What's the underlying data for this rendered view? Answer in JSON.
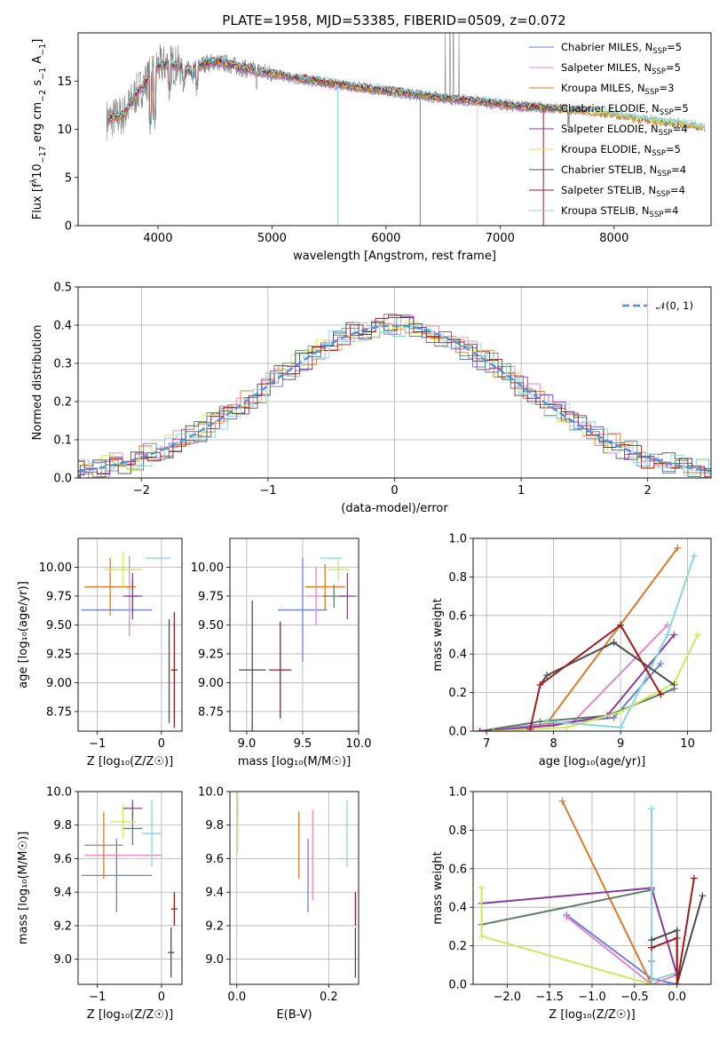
{
  "figure": {
    "title": "PLATE=1958, MJD=53385, FIBERID=0509, z=0.072"
  },
  "colors": {
    "chabrier_miles": "#6a7fd8",
    "salpeter_miles": "#e088c5",
    "kroupa_miles": "#d77a2a",
    "chabrier_elodie": "#5b7f63",
    "salpeter_elodie": "#8d3a9d",
    "kroupa_elodie": "#cfe85a",
    "chabrier_stelib": "#4d4d4d",
    "salpeter_stelib": "#a11b1b",
    "kroupa_stelib": "#86d7dd",
    "gaussian": "#5a8fd0",
    "data": "#808080",
    "grid": "#b0b0b0"
  },
  "chart_data": [
    {
      "id": "spectrum",
      "type": "line",
      "title": "PLATE=1958, MJD=53385, FIBERID=0509, z=0.072",
      "xlabel": "wavelength [Angstrom, rest frame]",
      "ylabel_main": "Flux [f",
      "ylabel_sub": "λ",
      "ylabel_mid": "10",
      "ylabel_sup1": "−17",
      "ylabel_mid2": " erg cm",
      "ylabel_sup2": "−2",
      "ylabel_mid3": " s",
      "ylabel_sup3": "−1",
      "ylabel_mid4": " A",
      "ylabel_sup4": "−1",
      "ylabel_end": "]",
      "xlim": [
        3300,
        8850
      ],
      "ylim": [
        0,
        20
      ],
      "xticks": [
        "4000",
        "5000",
        "6000",
        "7000",
        "8000"
      ],
      "yticks": [
        "0",
        "5",
        "10",
        "15"
      ],
      "grid": false,
      "legend_position": "top-right",
      "legend": [
        {
          "name": "Chabrier MILES, N",
          "sub": "SSP",
          "suffix": "=5",
          "color_key": "chabrier_miles"
        },
        {
          "name": "Salpeter MILES, N",
          "sub": "SSP",
          "suffix": "=5",
          "color_key": "salpeter_miles"
        },
        {
          "name": "Kroupa MILES, N",
          "sub": "SSP",
          "suffix": "=3",
          "color_key": "kroupa_miles"
        },
        {
          "name": "Chabrier ELODIE, N",
          "sub": "SSP",
          "suffix": "=5",
          "color_key": "chabrier_elodie"
        },
        {
          "name": "Salpeter ELODIE, N",
          "sub": "SSP",
          "suffix": "=4",
          "color_key": "salpeter_elodie"
        },
        {
          "name": "Kroupa ELODIE, N",
          "sub": "SSP",
          "suffix": "=5",
          "color_key": "kroupa_elodie"
        },
        {
          "name": "Chabrier STELIB, N",
          "sub": "SSP",
          "suffix": "=4",
          "color_key": "chabrier_stelib"
        },
        {
          "name": "Salpeter STELIB, N",
          "sub": "SSP",
          "suffix": "=4",
          "color_key": "salpeter_stelib"
        },
        {
          "name": "Kroupa STELIB, N",
          "sub": "SSP",
          "suffix": "=4",
          "color_key": "kroupa_stelib"
        }
      ],
      "data_continuum": [
        [
          3550,
          11.0
        ],
        [
          3700,
          11.5
        ],
        [
          3800,
          13.5
        ],
        [
          3900,
          15.0
        ],
        [
          4000,
          16.5
        ],
        [
          4100,
          16.8
        ],
        [
          4200,
          16.5
        ],
        [
          4300,
          16.0
        ],
        [
          4400,
          16.8
        ],
        [
          4500,
          17.0
        ],
        [
          4600,
          16.8
        ],
        [
          4700,
          16.5
        ],
        [
          4800,
          16.2
        ],
        [
          4900,
          16.0
        ],
        [
          5000,
          15.8
        ],
        [
          5200,
          15.3
        ],
        [
          5400,
          15.0
        ],
        [
          5600,
          14.6
        ],
        [
          5800,
          14.3
        ],
        [
          6000,
          14.0
        ],
        [
          6200,
          13.7
        ],
        [
          6400,
          13.4
        ],
        [
          6600,
          13.1
        ],
        [
          6800,
          12.9
        ],
        [
          7000,
          12.6
        ],
        [
          7200,
          12.4
        ],
        [
          7400,
          12.2
        ],
        [
          7600,
          12.0
        ],
        [
          7800,
          11.8
        ],
        [
          8000,
          11.5
        ],
        [
          8200,
          11.1
        ],
        [
          8400,
          10.8
        ],
        [
          8600,
          10.5
        ],
        [
          8800,
          10.2
        ]
      ],
      "absorption_lines": [
        [
          3934,
          9.0
        ],
        [
          3969,
          9.5
        ],
        [
          4102,
          12.5
        ],
        [
          4227,
          13.5
        ],
        [
          4304,
          13.8
        ],
        [
          4341,
          13.0
        ],
        [
          4861,
          14.0
        ],
        [
          5175,
          14.0
        ],
        [
          5270,
          14.8
        ],
        [
          5892,
          13.6
        ],
        [
          6563,
          12.5
        ],
        [
          7600,
          10.0
        ]
      ],
      "data_spikes": [
        [
          6520,
          20
        ],
        [
          6560,
          20
        ],
        [
          6590,
          20
        ],
        [
          6640,
          20
        ]
      ],
      "model_dips": [
        [
          5577,
          0.0
        ],
        [
          6300,
          0.0
        ],
        [
          6800,
          0.0
        ],
        [
          7380,
          0.0
        ]
      ]
    },
    {
      "id": "residuals",
      "type": "histogram",
      "xlabel": "(data-model)/error",
      "ylabel": "Normed distribution",
      "xlim": [
        -2.5,
        2.5
      ],
      "ylim": [
        0,
        0.5
      ],
      "xticks": [
        "−2",
        "−1",
        "0",
        "1",
        "2"
      ],
      "yticks": [
        "0.0",
        "0.1",
        "0.2",
        "0.3",
        "0.4",
        "0.5"
      ],
      "grid": true,
      "legend_position": "top-right",
      "legend": [
        {
          "name": "𝒩(0, 1)",
          "color_key": "gaussian"
        }
      ],
      "bin_width": 0.1
    },
    {
      "id": "age_vs_Z",
      "type": "scatter",
      "xlabel": "Z [log₁₀(Z/Z☉)]",
      "ylabel": "age  [log₁₀(age/yr)]",
      "xlim": [
        -1.3,
        0.32
      ],
      "ylim": [
        8.58,
        10.25
      ],
      "xticks": [
        "−1",
        "0"
      ],
      "yticks": [
        "8.75",
        "9.00",
        "9.25",
        "9.50",
        "9.75",
        "10.00"
      ],
      "grid": true,
      "points": [
        {
          "color_key": "chabrier_miles",
          "x": -0.7,
          "xerr": 0.55,
          "y": 9.63,
          "yerr": 0.0
        },
        {
          "color_key": "salpeter_miles",
          "x": -0.5,
          "xerr": 0.0,
          "y": 9.75,
          "yerr": 0.35
        },
        {
          "color_key": "kroupa_miles",
          "x": -0.8,
          "xerr": 0.4,
          "y": 9.83,
          "yerr": 0.25
        },
        {
          "color_key": "chabrier_elodie",
          "x": -0.45,
          "xerr": 0.1,
          "y": 9.75,
          "yerr": 0.15
        },
        {
          "color_key": "salpeter_elodie",
          "x": -0.45,
          "xerr": 0.15,
          "y": 9.75,
          "yerr": 0.2
        },
        {
          "color_key": "kroupa_elodie",
          "x": -0.6,
          "xerr": 0.3,
          "y": 9.98,
          "yerr": 0.15
        },
        {
          "color_key": "kroupa_stelib",
          "x": -0.05,
          "xerr": 0.2,
          "y": 10.08,
          "yerr": 0.0
        },
        {
          "color_key": "chabrier_stelib",
          "x": 0.12,
          "xerr": 0.0,
          "y": 9.1,
          "yerr": 0.45
        },
        {
          "color_key": "salpeter_stelib",
          "x": 0.2,
          "xerr": 0.05,
          "y": 9.11,
          "yerr": 0.5
        }
      ]
    },
    {
      "id": "age_vs_mass",
      "type": "scatter",
      "xlabel": "mass [log₁₀(M/M☉)]",
      "ylabel": "",
      "xlim": [
        8.85,
        10.0
      ],
      "ylim": [
        8.58,
        10.25
      ],
      "xticks": [
        "9.0",
        "9.5",
        "10.0"
      ],
      "yticks": [
        "8.75",
        "9.00",
        "9.25",
        "9.50",
        "9.75",
        "10.00"
      ],
      "grid": true,
      "points": [
        {
          "color_key": "chabrier_miles",
          "x": 9.5,
          "xerr": 0.22,
          "y": 9.63,
          "yerr": 0.45
        },
        {
          "color_key": "salpeter_miles",
          "x": 9.62,
          "xerr": 0.1,
          "y": 9.75,
          "yerr": 0.25
        },
        {
          "color_key": "kroupa_miles",
          "x": 9.7,
          "xerr": 0.18,
          "y": 9.83,
          "yerr": 0.2
        },
        {
          "color_key": "chabrier_elodie",
          "x": 9.78,
          "xerr": 0.1,
          "y": 9.75,
          "yerr": 0.1
        },
        {
          "color_key": "salpeter_elodie",
          "x": 9.9,
          "xerr": 0.08,
          "y": 9.75,
          "yerr": 0.2
        },
        {
          "color_key": "kroupa_elodie",
          "x": 9.82,
          "xerr": 0.1,
          "y": 9.98,
          "yerr": 0.1
        },
        {
          "color_key": "kroupa_stelib",
          "x": 9.75,
          "xerr": 0.1,
          "y": 10.08,
          "yerr": 0.0
        },
        {
          "color_key": "chabrier_stelib",
          "x": 9.05,
          "xerr": 0.12,
          "y": 9.11,
          "yerr": 0.6
        },
        {
          "color_key": "salpeter_stelib",
          "x": 9.3,
          "xerr": 0.1,
          "y": 9.11,
          "yerr": 0.42
        }
      ]
    },
    {
      "id": "weight_vs_age",
      "type": "line",
      "xlabel": "age  [log₁₀(age/yr)]",
      "ylabel": "mass weight",
      "xlim": [
        6.8,
        10.35
      ],
      "ylim": [
        0.0,
        1.0
      ],
      "xticks": [
        "7",
        "8",
        "9",
        "10"
      ],
      "yticks": [
        "0.0",
        "0.2",
        "0.4",
        "0.6",
        "0.8",
        "1.0"
      ],
      "grid": true,
      "series": [
        {
          "color_key": "chabrier_miles",
          "x": [
            6.9,
            7.7,
            8.9,
            9.6
          ],
          "y": [
            0.0,
            0.03,
            0.07,
            0.35
          ]
        },
        {
          "color_key": "salpeter_miles",
          "x": [
            6.9,
            7.8,
            8.3,
            9.7
          ],
          "y": [
            0.0,
            0.03,
            0.05,
            0.55
          ]
        },
        {
          "color_key": "kroupa_miles",
          "x": [
            7.9,
            9.85
          ],
          "y": [
            0.04,
            0.95
          ]
        },
        {
          "color_key": "chabrier_elodie",
          "x": [
            6.9,
            7.8,
            8.8,
            9.8
          ],
          "y": [
            0.0,
            0.05,
            0.08,
            0.22
          ]
        },
        {
          "color_key": "salpeter_elodie",
          "x": [
            6.9,
            8.0,
            8.8,
            9.8
          ],
          "y": [
            0.0,
            0.03,
            0.08,
            0.5
          ]
        },
        {
          "color_key": "kroupa_elodie",
          "x": [
            7.1,
            8.2,
            9.0,
            9.8,
            10.15
          ],
          "y": [
            0.0,
            0.02,
            0.1,
            0.25,
            0.5
          ]
        },
        {
          "color_key": "kroupa_stelib",
          "x": [
            7.9,
            9.0,
            9.7,
            10.1
          ],
          "y": [
            0.05,
            0.02,
            0.5,
            0.91
          ]
        },
        {
          "color_key": "chabrier_stelib",
          "x": [
            7.8,
            7.9,
            8.9,
            9.8
          ],
          "y": [
            0.24,
            0.29,
            0.46,
            0.24
          ]
        },
        {
          "color_key": "salpeter_stelib",
          "x": [
            7.65,
            7.8,
            9.0,
            9.6
          ],
          "y": [
            0.01,
            0.24,
            0.55,
            0.19
          ]
        }
      ]
    },
    {
      "id": "mass_vs_Z",
      "type": "scatter",
      "xlabel": "Z [log₁₀(Z/Z☉)]",
      "ylabel": "mass [log₁₀(M/M☉)]",
      "xlim": [
        -1.3,
        0.32
      ],
      "ylim": [
        8.85,
        10.0
      ],
      "xticks": [
        "−1",
        "0"
      ],
      "yticks": [
        "9.0",
        "9.2",
        "9.4",
        "9.6",
        "9.8",
        "10.0"
      ],
      "grid": true,
      "points": [
        {
          "color_key": "chabrier_miles",
          "x": -0.7,
          "xerr": 0.55,
          "y": 9.5,
          "yerr": 0.22
        },
        {
          "color_key": "salpeter_miles",
          "x": -0.6,
          "xerr": 0.6,
          "y": 9.62,
          "yerr": 0.0
        },
        {
          "color_key": "kroupa_miles",
          "x": -0.9,
          "xerr": 0.3,
          "y": 9.68,
          "yerr": 0.2
        },
        {
          "color_key": "chabrier_elodie",
          "x": -0.45,
          "xerr": 0.15,
          "y": 9.78,
          "yerr": 0.1
        },
        {
          "color_key": "salpeter_elodie",
          "x": -0.45,
          "xerr": 0.15,
          "y": 9.9,
          "yerr": 0.05
        },
        {
          "color_key": "kroupa_elodie",
          "x": -0.6,
          "xerr": 0.2,
          "y": 9.82,
          "yerr": 0.1
        },
        {
          "color_key": "kroupa_stelib",
          "x": -0.15,
          "xerr": 0.15,
          "y": 9.75,
          "yerr": 0.2
        },
        {
          "color_key": "chabrier_stelib",
          "x": 0.15,
          "xerr": 0.05,
          "y": 9.04,
          "yerr": 0.15
        },
        {
          "color_key": "salpeter_stelib",
          "x": 0.2,
          "xerr": 0.05,
          "y": 9.3,
          "yerr": 0.1
        }
      ]
    },
    {
      "id": "mass_vs_ebv",
      "type": "scatter",
      "xlabel": "E(B-V)",
      "ylabel": "",
      "xlim": [
        -0.015,
        0.265
      ],
      "ylim": [
        8.85,
        10.0
      ],
      "xticks": [
        "0.0",
        "0.2"
      ],
      "yticks": [
        "9.0",
        "9.2",
        "9.4",
        "9.6",
        "9.8",
        "10.0"
      ],
      "grid": true,
      "points": [
        {
          "color_key": "chabrier_miles",
          "x": 0.155,
          "xerr": 0.0,
          "y": 9.5,
          "yerr": 0.22
        },
        {
          "color_key": "salpeter_miles",
          "x": 0.165,
          "xerr": 0.0,
          "y": 9.62,
          "yerr": 0.27
        },
        {
          "color_key": "kroupa_miles",
          "x": 0.135,
          "xerr": 0.0,
          "y": 9.68,
          "yerr": 0.2
        },
        {
          "color_key": "salpeter_elodie",
          "x": 0.002,
          "xerr": 0.0,
          "y": 9.9,
          "yerr": 0.05
        },
        {
          "color_key": "kroupa_elodie",
          "x": 0.002,
          "xerr": 0.0,
          "y": 9.82,
          "yerr": 0.18
        },
        {
          "color_key": "kroupa_stelib",
          "x": 0.24,
          "xerr": 0.0,
          "y": 9.75,
          "yerr": 0.2
        },
        {
          "color_key": "chabrier_stelib",
          "x": 0.258,
          "xerr": 0.0,
          "y": 9.04,
          "yerr": 0.15
        },
        {
          "color_key": "salpeter_stelib",
          "x": 0.258,
          "xerr": 0.0,
          "y": 9.3,
          "yerr": 0.1
        }
      ]
    },
    {
      "id": "weight_vs_Z",
      "type": "line",
      "xlabel": "Z [log₁₀(Z/Z☉)]",
      "ylabel": "mass weight",
      "xlim": [
        -2.4,
        0.4
      ],
      "ylim": [
        0.0,
        1.0
      ],
      "xticks": [
        "−2.0",
        "−1.5",
        "−1.0",
        "−0.5",
        "0.0"
      ],
      "yticks": [
        "0.0",
        "0.2",
        "0.4",
        "0.6",
        "0.8",
        "1.0"
      ],
      "grid": true,
      "series": [
        {
          "color_key": "chabrier_miles",
          "x": [
            -1.3,
            -0.3,
            0.0
          ],
          "y": [
            0.36,
            0.03,
            0.0
          ]
        },
        {
          "color_key": "salpeter_miles",
          "x": [
            -1.3,
            -0.3,
            0.0
          ],
          "y": [
            0.35,
            0.0,
            0.05
          ]
        },
        {
          "color_key": "kroupa_miles",
          "x": [
            -1.35,
            -0.3
          ],
          "y": [
            0.95,
            0.0
          ]
        },
        {
          "color_key": "chabrier_elodie",
          "x": [
            -2.3,
            -0.3,
            -0.3
          ],
          "y": [
            0.31,
            0.49,
            0.12
          ]
        },
        {
          "color_key": "salpeter_elodie",
          "x": [
            -2.3,
            -0.3,
            0.0
          ],
          "y": [
            0.42,
            0.5,
            0.05
          ]
        },
        {
          "color_key": "kroupa_elodie",
          "x": [
            -2.3,
            -2.3,
            -0.3,
            0.0
          ],
          "y": [
            0.5,
            0.25,
            0.0,
            0.0
          ]
        },
        {
          "color_key": "kroupa_stelib",
          "x": [
            -0.3,
            -0.3,
            0.0
          ],
          "y": [
            0.91,
            0.02,
            0.06
          ]
        },
        {
          "color_key": "chabrier_stelib",
          "x": [
            -0.3,
            0.0,
            0.0,
            0.3
          ],
          "y": [
            0.23,
            0.28,
            0.0,
            0.46
          ]
        },
        {
          "color_key": "salpeter_stelib",
          "x": [
            -0.3,
            0.0,
            0.0,
            0.2
          ],
          "y": [
            0.19,
            0.24,
            0.0,
            0.55
          ]
        }
      ]
    }
  ]
}
